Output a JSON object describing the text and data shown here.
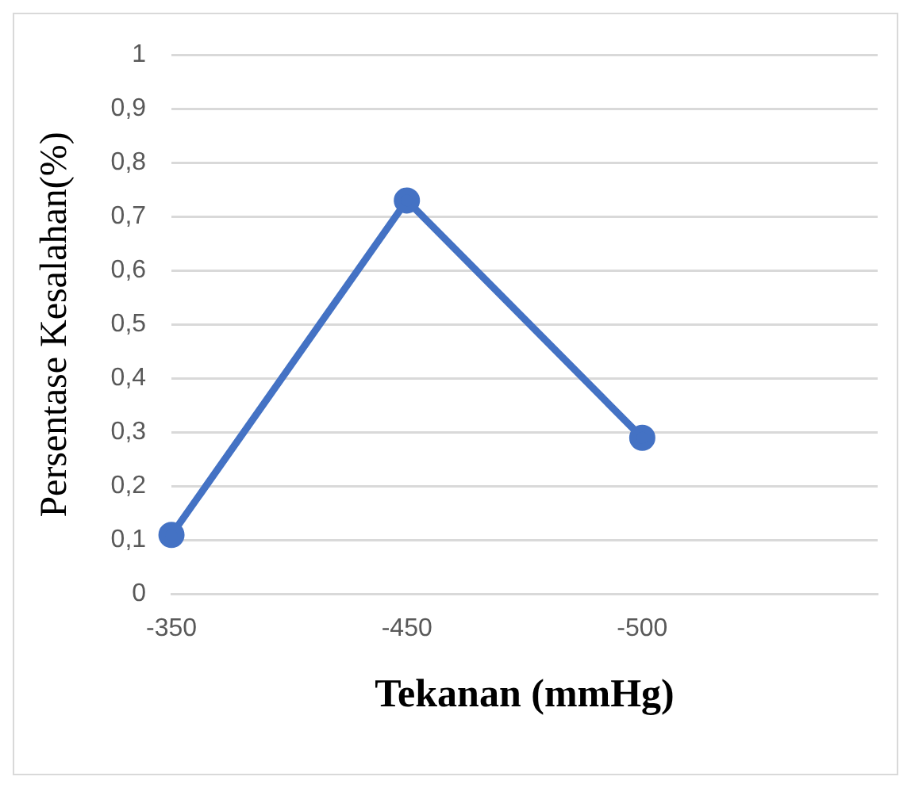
{
  "chart_data": {
    "type": "line",
    "xlabel": "Tekanan (mmHg)",
    "ylabel": "Persentase Kesalahan(%)",
    "categories": [
      "-350",
      "-450",
      "-500",
      null
    ],
    "series": [
      {
        "color": "#4472c4",
        "values": [
          0.11,
          0.73,
          0.29,
          null
        ]
      }
    ],
    "ylim": [
      0,
      1
    ],
    "yticks": [
      {
        "value": 0,
        "label": "0"
      },
      {
        "value": 0.1,
        "label": "0,1"
      },
      {
        "value": 0.2,
        "label": "0,2"
      },
      {
        "value": 0.3,
        "label": "0,3"
      },
      {
        "value": 0.4,
        "label": "0,4"
      },
      {
        "value": 0.5,
        "label": "0,5"
      },
      {
        "value": 0.6,
        "label": "0,6"
      },
      {
        "value": 0.7,
        "label": "0,7"
      },
      {
        "value": 0.8,
        "label": "0,8"
      },
      {
        "value": 0.9,
        "label": "0,9"
      },
      {
        "value": 1,
        "label": "1"
      }
    ],
    "grid": "y",
    "legend": false,
    "marker": "circle",
    "line_style": "solid"
  }
}
